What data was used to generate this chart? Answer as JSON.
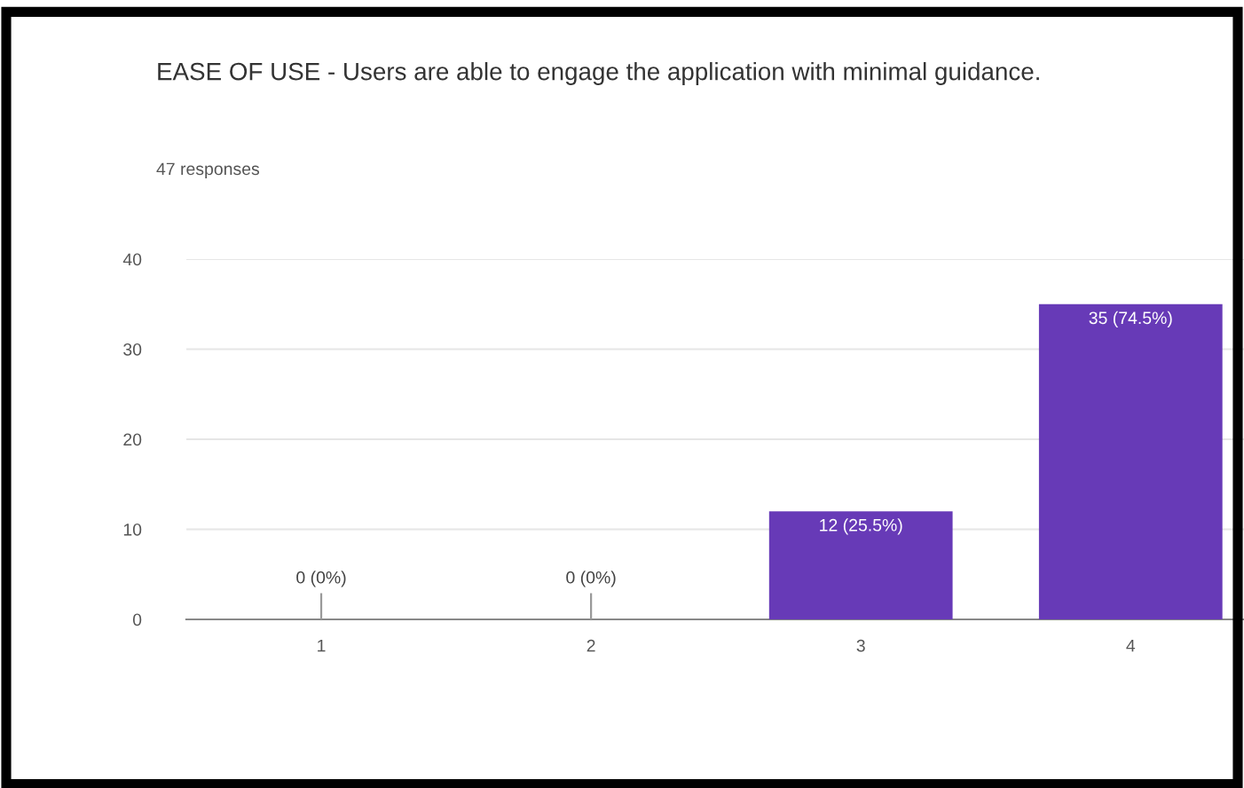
{
  "chart_data": {
    "type": "bar",
    "title": "EASE OF USE - Users are able to engage the application with minimal guidance.",
    "subtitle": "47 responses",
    "categories": [
      "1",
      "2",
      "3",
      "4"
    ],
    "values": [
      0,
      0,
      12,
      35
    ],
    "value_labels": [
      "0 (0%)",
      "0 (0%)",
      "12 (25.5%)",
      "35 (74.5%)"
    ],
    "color": "#673ab7",
    "ylim": [
      0,
      40
    ],
    "yticks": [
      0,
      10,
      20,
      30,
      40
    ],
    "grid": "y"
  }
}
